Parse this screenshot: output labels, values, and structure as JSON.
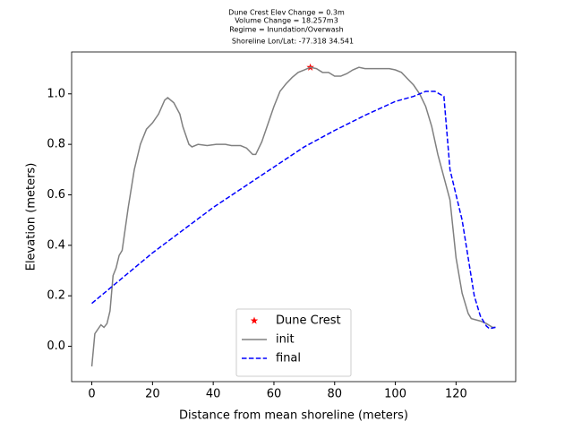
{
  "chart_data": {
    "type": "line",
    "title": [
      "Dune Crest Elev Change = 0.3m",
      "Volume Change = 18.257m3",
      "Regime = Inundation/Overwash",
      "Shoreline Lon/Lat: -77.318 34.541"
    ],
    "xlabel": "Distance from mean shoreline (meters)",
    "ylabel": "Elevation (meters)",
    "xlim": [
      -6.65,
      139.65
    ],
    "ylim": [
      -0.14,
      1.166
    ],
    "xticks": [
      0,
      20,
      40,
      60,
      80,
      100,
      120
    ],
    "yticks": [
      {
        "value": 0,
        "label": "0.0"
      },
      0.2,
      0.4,
      0.6,
      0.8,
      {
        "value": 1,
        "label": "1.0"
      }
    ],
    "legend": "lower center",
    "series": [
      {
        "name": "Dune Crest",
        "color": "#ff0000",
        "marker": "star",
        "x": [
          72
        ],
        "values": [
          1.105
        ]
      },
      {
        "name": "init",
        "color": "#808080",
        "linestyle": "solid",
        "x": [
          0,
          1,
          3,
          4,
          5,
          6,
          7,
          8,
          9,
          10,
          12,
          14,
          16,
          18,
          20,
          22,
          24,
          25,
          27,
          29,
          30,
          32,
          33,
          35,
          38,
          41,
          44,
          46,
          49,
          51,
          53,
          54,
          56,
          58,
          60,
          62,
          64,
          66,
          68,
          70,
          72,
          74,
          76,
          78,
          80,
          82,
          84,
          86,
          88,
          90,
          94,
          98,
          100,
          102,
          104,
          106,
          108,
          110,
          112,
          114,
          116,
          118,
          120,
          122,
          124,
          125,
          128,
          130,
          132,
          133
        ],
        "values": [
          -0.08,
          0.05,
          0.085,
          0.075,
          0.09,
          0.14,
          0.28,
          0.31,
          0.36,
          0.38,
          0.55,
          0.7,
          0.8,
          0.86,
          0.885,
          0.92,
          0.975,
          0.985,
          0.965,
          0.92,
          0.87,
          0.8,
          0.79,
          0.8,
          0.795,
          0.8,
          0.8,
          0.795,
          0.795,
          0.785,
          0.76,
          0.76,
          0.81,
          0.88,
          0.95,
          1.01,
          1.04,
          1.065,
          1.085,
          1.095,
          1.105,
          1.1,
          1.085,
          1.085,
          1.07,
          1.07,
          1.08,
          1.095,
          1.105,
          1.1,
          1.1,
          1.1,
          1.095,
          1.085,
          1.06,
          1.035,
          1.0,
          0.95,
          0.87,
          0.76,
          0.67,
          0.58,
          0.35,
          0.21,
          0.13,
          0.11,
          0.1,
          0.09,
          0.075,
          0.075
        ]
      },
      {
        "name": "final",
        "color": "#0000ff",
        "linestyle": "dashed",
        "x": [
          0,
          10,
          20,
          30,
          40,
          50,
          60,
          70,
          80,
          90,
          100,
          106,
          110,
          113,
          116,
          118,
          120,
          122,
          124,
          126,
          128,
          130,
          131,
          133
        ],
        "values": [
          0.17,
          0.27,
          0.37,
          0.46,
          0.55,
          0.63,
          0.71,
          0.79,
          0.855,
          0.915,
          0.97,
          0.99,
          1.01,
          1.01,
          0.99,
          0.7,
          0.6,
          0.5,
          0.35,
          0.2,
          0.12,
          0.08,
          0.07,
          0.075
        ]
      }
    ]
  }
}
